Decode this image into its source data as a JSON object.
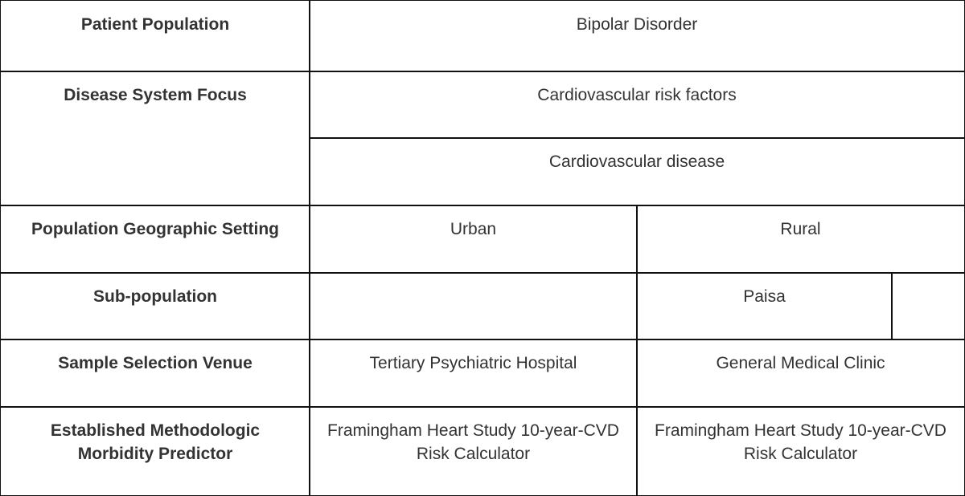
{
  "rows": [
    {
      "label": "Patient Population",
      "values": [
        "Bipolar Disorder"
      ]
    },
    {
      "label": "Disease System Focus",
      "values": [
        "Cardiovascular risk factors",
        "Cardiovascular disease"
      ]
    },
    {
      "label": "Population Geographic Setting",
      "values": [
        "Urban",
        "Rural"
      ]
    },
    {
      "label": "Sub-population",
      "values": [
        "",
        "Paisa",
        ""
      ]
    },
    {
      "label": "Sample Selection Venue",
      "values": [
        "Tertiary Psychiatric Hospital",
        "General Medical Clinic"
      ]
    },
    {
      "label": "Established Methodologic Morbidity Predictor",
      "values": [
        "Framingham Heart Study 10-year-CVD Risk Calculator",
        "Framingham Heart Study 10-year-CVD Risk Calculator"
      ]
    }
  ]
}
